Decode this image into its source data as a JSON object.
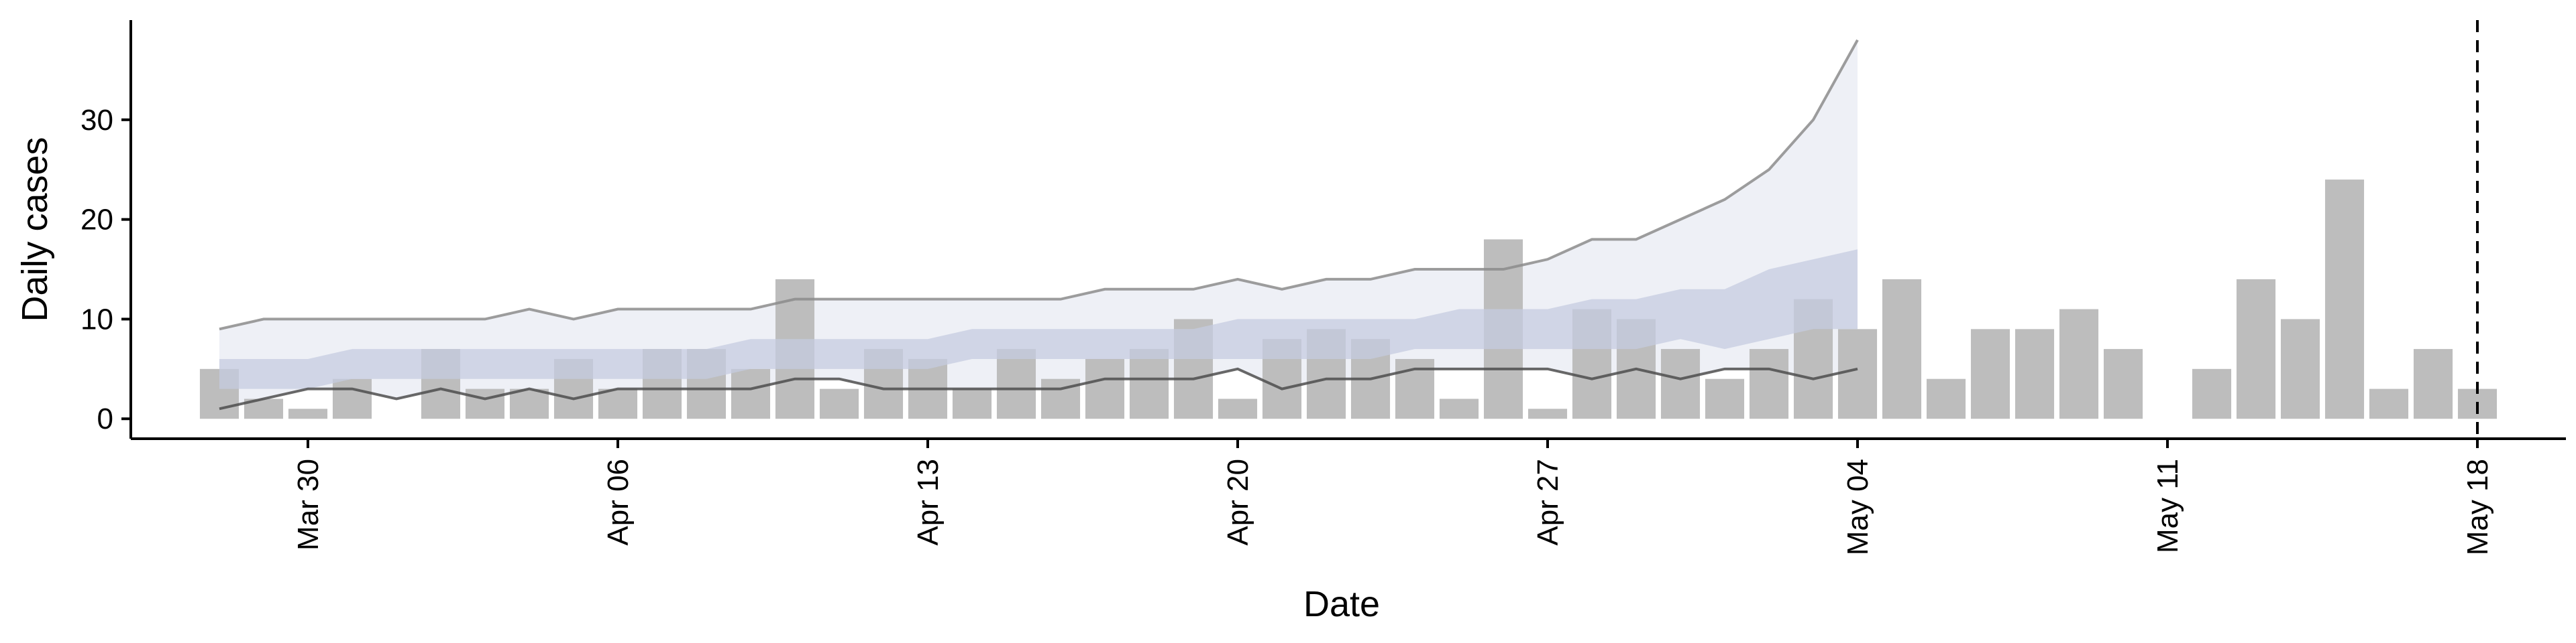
{
  "chart_data": {
    "type": "bar",
    "title": "",
    "xlabel": "Date",
    "ylabel": "Daily cases",
    "x_ticks": [
      "Mar 30",
      "Apr 06",
      "Apr 13",
      "Apr 20",
      "Apr 27",
      "May 04",
      "May 11",
      "May 18"
    ],
    "y_ticks": [
      "0",
      "10",
      "20",
      "30"
    ],
    "ylim": [
      -2,
      40
    ],
    "xlim": [
      "2020-03-26",
      "2020-05-20"
    ],
    "grid": false,
    "legend": "none",
    "vertical_line_date": "2020-05-18",
    "colors": {
      "bars": "#bdbdbd",
      "outer_band": "#eef0f6",
      "inner_band": "#c5cce0",
      "upper_line": "#8c8c8c",
      "lower_line": "#4d4d4d",
      "vline": "#000000"
    },
    "bars": {
      "dates": [
        "2020-03-28",
        "2020-03-29",
        "2020-03-30",
        "2020-03-31",
        "2020-04-01",
        "2020-04-02",
        "2020-04-03",
        "2020-04-04",
        "2020-04-05",
        "2020-04-06",
        "2020-04-07",
        "2020-04-08",
        "2020-04-09",
        "2020-04-10",
        "2020-04-11",
        "2020-04-12",
        "2020-04-13",
        "2020-04-14",
        "2020-04-15",
        "2020-04-16",
        "2020-04-17",
        "2020-04-18",
        "2020-04-19",
        "2020-04-20",
        "2020-04-21",
        "2020-04-22",
        "2020-04-23",
        "2020-04-24",
        "2020-04-25",
        "2020-04-26",
        "2020-04-27",
        "2020-04-28",
        "2020-04-29",
        "2020-04-30",
        "2020-05-01",
        "2020-05-02",
        "2020-05-03",
        "2020-05-04",
        "2020-05-05",
        "2020-05-06",
        "2020-05-07",
        "2020-05-08",
        "2020-05-09",
        "2020-05-10",
        "2020-05-11",
        "2020-05-12",
        "2020-05-13",
        "2020-05-14",
        "2020-05-15",
        "2020-05-16",
        "2020-05-17",
        "2020-05-18",
        "2020-05-19"
      ],
      "values": [
        5,
        2,
        1,
        4,
        0,
        7,
        3,
        3,
        6,
        3,
        7,
        7,
        5,
        14,
        3,
        7,
        6,
        3,
        7,
        4,
        6,
        7,
        10,
        2,
        8,
        9,
        8,
        6,
        2,
        18,
        1,
        11,
        10,
        7,
        4,
        7,
        12,
        9,
        14,
        4,
        9,
        9,
        11,
        7,
        0,
        5,
        14,
        10,
        24,
        3,
        7,
        3,
        0
      ]
    },
    "projection": {
      "dates": [
        "2020-03-28",
        "2020-03-29",
        "2020-03-30",
        "2020-03-31",
        "2020-04-01",
        "2020-04-02",
        "2020-04-03",
        "2020-04-04",
        "2020-04-05",
        "2020-04-06",
        "2020-04-07",
        "2020-04-08",
        "2020-04-09",
        "2020-04-10",
        "2020-04-11",
        "2020-04-12",
        "2020-04-13",
        "2020-04-14",
        "2020-04-15",
        "2020-04-16",
        "2020-04-17",
        "2020-04-18",
        "2020-04-19",
        "2020-04-20",
        "2020-04-21",
        "2020-04-22",
        "2020-04-23",
        "2020-04-24",
        "2020-04-25",
        "2020-04-26",
        "2020-04-27",
        "2020-04-28",
        "2020-04-29",
        "2020-04-30",
        "2020-05-01",
        "2020-05-02",
        "2020-05-03",
        "2020-05-04"
      ],
      "outer_upper": [
        9,
        10,
        10,
        10,
        10,
        10,
        10,
        11,
        10,
        11,
        11,
        11,
        11,
        12,
        12,
        12,
        12,
        12,
        12,
        12,
        13,
        13,
        13,
        14,
        13,
        14,
        14,
        15,
        15,
        15,
        16,
        18,
        18,
        20,
        22,
        25,
        30,
        38
      ],
      "outer_lower": [
        1,
        2,
        3,
        3,
        2,
        3,
        2,
        3,
        2,
        3,
        3,
        3,
        3,
        4,
        4,
        3,
        3,
        3,
        3,
        3,
        4,
        4,
        4,
        5,
        3,
        4,
        4,
        5,
        5,
        5,
        5,
        4,
        5,
        4,
        5,
        5,
        4,
        5
      ],
      "inner_upper": [
        6,
        6,
        6,
        7,
        7,
        7,
        7,
        7,
        7,
        7,
        7,
        7,
        8,
        8,
        8,
        8,
        8,
        9,
        9,
        9,
        9,
        9,
        9,
        10,
        10,
        10,
        10,
        10,
        11,
        11,
        11,
        12,
        12,
        13,
        13,
        15,
        16,
        17
      ],
      "inner_lower": [
        3,
        3,
        3,
        4,
        4,
        4,
        4,
        4,
        4,
        4,
        4,
        4,
        5,
        5,
        5,
        5,
        5,
        6,
        6,
        6,
        6,
        6,
        6,
        6,
        6,
        6,
        6,
        7,
        7,
        7,
        7,
        7,
        7,
        8,
        7,
        8,
        9,
        9
      ]
    }
  }
}
